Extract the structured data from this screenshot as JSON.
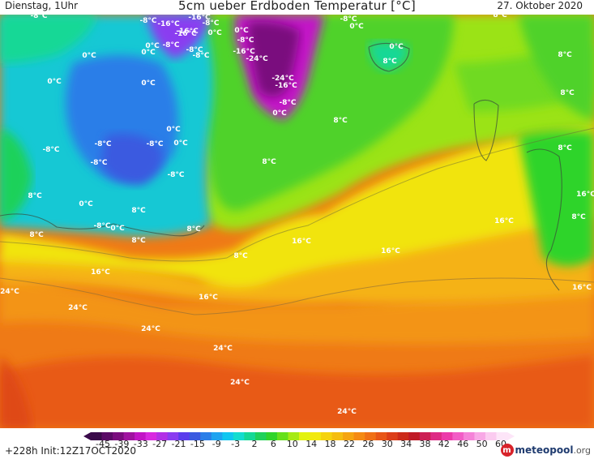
{
  "header": {
    "left": "Dienstag, 1Uhr",
    "title": "5cm ueber Erdboden Temperatur [°C]",
    "right": "27. Oktober 2020"
  },
  "footer": {
    "init": "+228h  Init:12Z17OCT2020",
    "logo": "meteopool",
    "logo_suffix": ".org"
  },
  "colorbar": {
    "ticks": [
      "-45",
      "-39",
      "-33",
      "-27",
      "-21",
      "-15",
      "-9",
      "-3",
      "2",
      "6",
      "10",
      "14",
      "18",
      "22",
      "26",
      "30",
      "34",
      "38",
      "42",
      "46",
      "50",
      "60"
    ],
    "colors": [
      "#3a0a4a",
      "#5a0a66",
      "#7a0c7e",
      "#a012a0",
      "#c214c6",
      "#d828e0",
      "#b22fe6",
      "#8a3cf0",
      "#5b3cec",
      "#3a5ae0",
      "#2a7ee8",
      "#1fa3f0",
      "#10c6f0",
      "#13dccf",
      "#15d896",
      "#1fd15a",
      "#2fd42a",
      "#66e01b",
      "#a6ea15",
      "#e3f20f",
      "#f2e90f",
      "#f5d30f",
      "#f5bd10",
      "#f5a411",
      "#f58a13",
      "#f07016",
      "#e85618",
      "#dc3e19",
      "#cc2a1a",
      "#c01a26",
      "#cc1f55",
      "#de2a85",
      "#ec3aaa",
      "#f25cc6",
      "#f582d8",
      "#f8a8e6",
      "#fbcbf0",
      "#fde5f8"
    ]
  },
  "map_labels": [
    {
      "t": "-8°C"
    },
    {
      "t": "-8°C"
    },
    {
      "t": "-8°C"
    },
    {
      "t": "-16°C"
    },
    {
      "t": "-24°C"
    },
    {
      "t": "-16°C"
    },
    {
      "t": "-8°C"
    },
    {
      "t": "0°C"
    },
    {
      "t": "0°C"
    },
    {
      "t": "-16°C"
    },
    {
      "t": "-24°C"
    },
    {
      "t": "-16°C"
    },
    {
      "t": "-8°C"
    },
    {
      "t": "0°C"
    },
    {
      "t": "8°C"
    },
    {
      "t": "8°C"
    },
    {
      "t": "8°C"
    },
    {
      "t": "-16°C"
    },
    {
      "t": "-8°C"
    },
    {
      "t": "-8°C"
    },
    {
      "t": "-8°C"
    },
    {
      "t": "-16°C"
    },
    {
      "t": "-24°C"
    },
    {
      "t": "-8°C"
    },
    {
      "t": "0°C"
    },
    {
      "t": "0°C"
    },
    {
      "t": "-24°C"
    },
    {
      "t": "-16°C"
    },
    {
      "t": "-8°C"
    },
    {
      "t": "0°C"
    },
    {
      "t": "0°C"
    },
    {
      "t": "8°C"
    },
    {
      "t": "8°C"
    },
    {
      "t": "8°C"
    },
    {
      "t": "0°C"
    },
    {
      "t": "8°C"
    },
    {
      "t": "-8°C"
    },
    {
      "t": "-8°C"
    },
    {
      "t": "0°C"
    },
    {
      "t": "0°C"
    },
    {
      "t": "8°C"
    },
    {
      "t": "-8°C"
    },
    {
      "t": "-8°C"
    },
    {
      "t": "8°C"
    },
    {
      "t": "-8°C"
    },
    {
      "t": "0°C"
    },
    {
      "t": "0°C"
    },
    {
      "t": "0°C"
    },
    {
      "t": "8°C"
    },
    {
      "t": "8°C"
    },
    {
      "t": "8°C"
    },
    {
      "t": "16°C"
    },
    {
      "t": "-8°C"
    },
    {
      "t": "0°C"
    },
    {
      "t": "8°C"
    },
    {
      "t": "8°C"
    },
    {
      "t": "8°C"
    },
    {
      "t": "16°C"
    },
    {
      "t": "16°C"
    },
    {
      "t": "16°C"
    },
    {
      "t": "8°C"
    },
    {
      "t": "16°C"
    },
    {
      "t": "24°C"
    },
    {
      "t": "24°C"
    },
    {
      "t": "16°C"
    },
    {
      "t": "16°C"
    },
    {
      "t": "24°C"
    },
    {
      "t": "24°C"
    },
    {
      "t": "24°C"
    },
    {
      "t": "24°C"
    }
  ]
}
